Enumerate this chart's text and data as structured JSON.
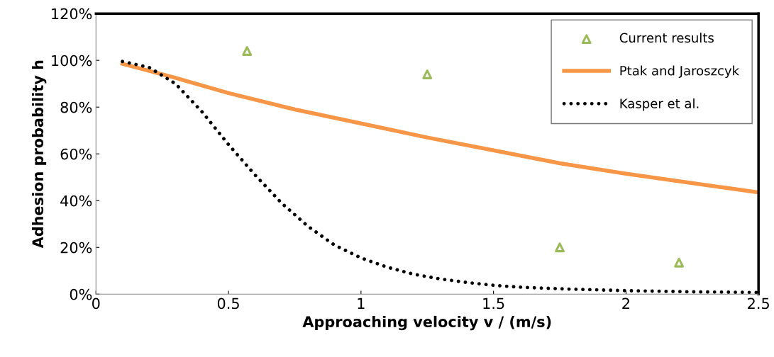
{
  "chart_data": {
    "type": "line",
    "xlabel": "Approaching velocity v / (m/s)",
    "ylabel": "Adhesion probability h",
    "xlim": [
      0,
      2.5
    ],
    "xticks": [
      0,
      0.5,
      1,
      1.5,
      2,
      2.5
    ],
    "ylim": [
      0,
      120
    ],
    "yticks": [
      {
        "value": 0,
        "label": "0%"
      },
      {
        "value": 20,
        "label": "20%"
      },
      {
        "value": 40,
        "label": "40%"
      },
      {
        "value": 60,
        "label": "60%"
      },
      {
        "value": 80,
        "label": "80%"
      },
      {
        "value": 100,
        "label": "100%"
      },
      {
        "value": 120,
        "label": "120%"
      }
    ],
    "grid": false,
    "legend": "top right",
    "series": [
      {
        "name": "Current results",
        "type": "scatter",
        "marker": "triangle",
        "color": "#9bbb59",
        "x": [
          0.57,
          1.25,
          1.75,
          2.2
        ],
        "values": [
          104,
          94,
          20,
          13.5
        ]
      },
      {
        "name": "Ptak and Jaroszcyk",
        "line_style": "solid",
        "color": "#f79646",
        "x": [
          0.1,
          0.3,
          0.5,
          0.75,
          1,
          1.25,
          1.5,
          1.75,
          2,
          2.25,
          2.5
        ],
        "values": [
          98.5,
          92.5,
          86,
          79,
          73,
          67,
          61.5,
          56,
          51.5,
          47.5,
          43.5
        ]
      },
      {
        "name": "Kasper et al.",
        "line_style": "dotted",
        "color": "#000000",
        "x": [
          0.1,
          0.2,
          0.3,
          0.4,
          0.5,
          0.6,
          0.7,
          0.8,
          0.9,
          1.0,
          1.1,
          1.2,
          1.3,
          1.4,
          1.5,
          1.6,
          1.75,
          2,
          2.25,
          2.5
        ],
        "values": [
          99.5,
          97,
          90,
          78,
          64,
          51,
          39,
          29,
          21,
          15.5,
          11.5,
          8.5,
          6.5,
          5,
          3.8,
          3,
          2.3,
          1.5,
          1,
          0.7
        ]
      }
    ]
  }
}
